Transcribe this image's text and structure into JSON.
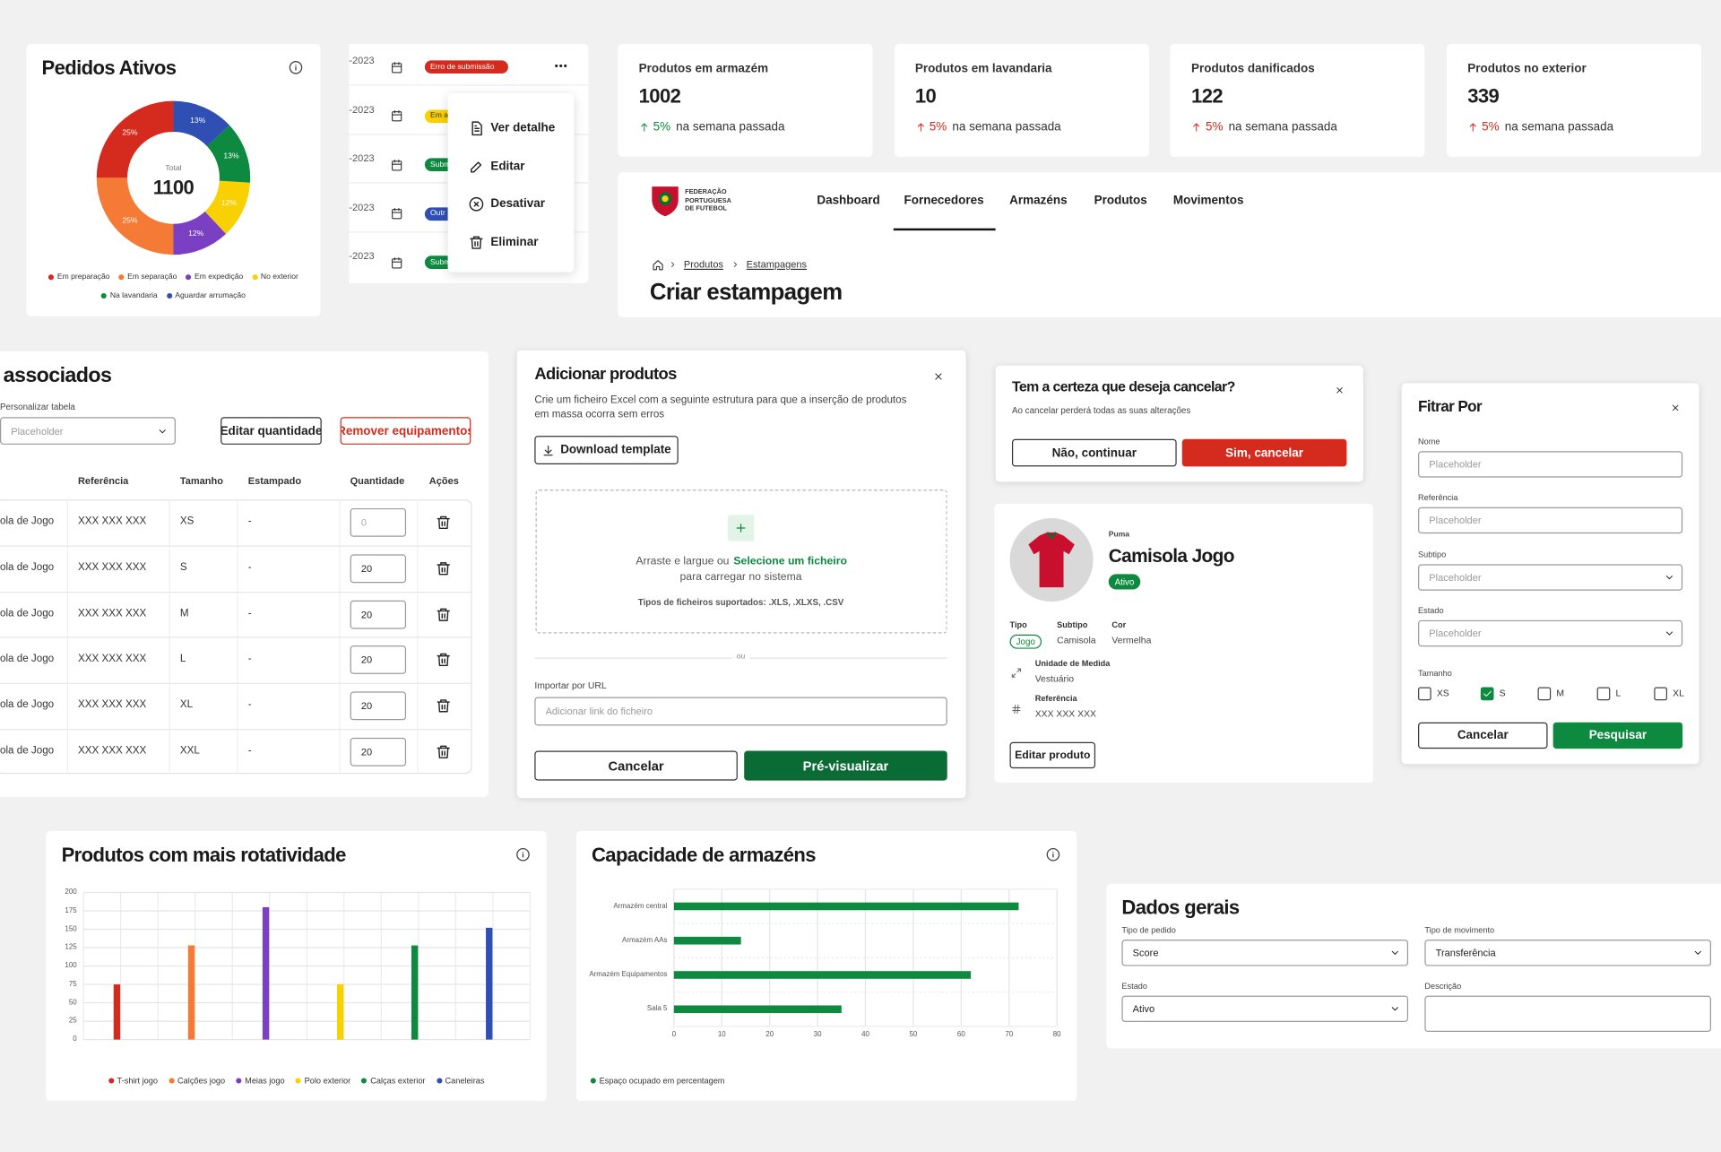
{
  "chart_data": [
    {
      "type": "pie",
      "donut": true,
      "title": "Pedidos Ativos",
      "center_label": "Total",
      "center_value": 1100,
      "categories": [
        "Em preparação",
        "Em separação",
        "Em expedição",
        "No exterior",
        "Na lavandaria",
        "Aguardar arrumação"
      ],
      "values": [
        25,
        25,
        12,
        12,
        13,
        13
      ],
      "value_labels": [
        "25%",
        "25%",
        "12%",
        "12%",
        "13%",
        "13%"
      ],
      "colors": [
        "#d52b1e",
        "#f47a35",
        "#7b3fc4",
        "#f9d000",
        "#0d8a3f",
        "#2f4fb5"
      ]
    },
    {
      "type": "bar",
      "title": "Produtos com mais rotatividade",
      "categories": [
        null
      ],
      "ylim": [
        0,
        200
      ],
      "yticks": [
        0,
        25,
        50,
        75,
        100,
        125,
        150,
        175,
        200
      ],
      "grid": true,
      "series": [
        {
          "name": "T-shirt jogo",
          "color": "#d52b1e",
          "values": [
            75
          ]
        },
        {
          "name": "Calções jogo",
          "color": "#f47a35",
          "values": [
            128
          ]
        },
        {
          "name": "Meias jogo",
          "color": "#7b3fc4",
          "values": [
            180
          ]
        },
        {
          "name": "Polo exterior",
          "color": "#f9d000",
          "values": [
            75
          ]
        },
        {
          "name": "Calças exterior",
          "color": "#0d8a3f",
          "values": [
            128
          ]
        },
        {
          "name": "Caneleiras",
          "color": "#2f4fb5",
          "values": [
            152
          ]
        }
      ]
    },
    {
      "type": "barh",
      "title": "Capacidade de armazéns",
      "categories": [
        "Armazém central",
        "Armazém AAs",
        "Armazém Equipamentos",
        "Sala 5"
      ],
      "xlim": [
        0,
        80
      ],
      "xticks": [
        0,
        10,
        20,
        30,
        40,
        50,
        60,
        70,
        80
      ],
      "grid": true,
      "series": [
        {
          "name": "Espaço ocupado em percentagem",
          "color": "#0d8a3f",
          "values": [
            72,
            14,
            62,
            35
          ]
        }
      ]
    }
  ],
  "orders_table": {
    "rows": [
      {
        "date": "-2023",
        "status": "Erro de submissão",
        "color": "#d52b1e"
      },
      {
        "date": "-2023",
        "status": "Em a",
        "color": "#f9d000"
      },
      {
        "date": "-2023",
        "status": "Subm",
        "color": "#0d8a3f"
      },
      {
        "date": "-2023",
        "status": "Outr",
        "color": "#2f4fb5"
      },
      {
        "date": "-2023",
        "status": "Subm",
        "color": "#0d8a3f"
      }
    ]
  },
  "row_menu": {
    "items": [
      "Ver detalhe",
      "Editar",
      "Desativar",
      "Eliminar"
    ]
  },
  "stats": [
    {
      "label": "Produtos em armazém",
      "value": 1002,
      "change": "5%",
      "note": "na semana passada",
      "color": "#0d8a3f"
    },
    {
      "label": "Produtos em lavandaria",
      "value": 10,
      "change": "5%",
      "note": "na semana passada",
      "color": "#d52b1e"
    },
    {
      "label": "Produtos danificados",
      "value": 122,
      "change": "5%",
      "note": "na semana passada",
      "color": "#d52b1e"
    },
    {
      "label": "Produtos no exterior",
      "value": 339,
      "change": "5%",
      "note": "na semana passada",
      "color": "#d52b1e"
    }
  ],
  "header": {
    "logo": [
      "FEDERAÇÃO",
      "PORTUGUESA",
      "DE FUTEBOL"
    ],
    "nav": [
      "Dashboard",
      "Fornecedores",
      "Armazéns",
      "Produtos",
      "Movimentos"
    ],
    "active_nav": 1,
    "breadcrumb": [
      "Produtos",
      "Estampagens"
    ],
    "title": "Criar estampagem"
  },
  "equipment_table": {
    "title": "associados",
    "customize_label": "Personalizar tabela",
    "select_placeholder": "Placeholder",
    "edit_button": "Editar quantidade",
    "remove_button": "Remover equipamentos",
    "columns": [
      "Referência",
      "Tamanho",
      "Estampado",
      "Quantidade",
      "Ações"
    ],
    "rows": [
      {
        "name": "ola de Jogo",
        "reference": "XXX XXX XXX",
        "size": "XS",
        "print": "-",
        "quantity": 0
      },
      {
        "name": "ola de Jogo",
        "reference": "XXX XXX XXX",
        "size": "S",
        "print": "-",
        "quantity": 20
      },
      {
        "name": "ola de Jogo",
        "reference": "XXX XXX XXX",
        "size": "M",
        "print": "-",
        "quantity": 20
      },
      {
        "name": "ola de Jogo",
        "reference": "XXX XXX XXX",
        "size": "L",
        "print": "-",
        "quantity": 20
      },
      {
        "name": "ola de Jogo",
        "reference": "XXX XXX XXX",
        "size": "XL",
        "print": "-",
        "quantity": 20
      },
      {
        "name": "ola de Jogo",
        "reference": "XXX XXX XXX",
        "size": "XXL",
        "print": "-",
        "quantity": 20
      }
    ]
  },
  "upload_modal": {
    "title": "Adicionar produtos",
    "description": "Crie um ficheiro Excel com a seguinte estrutura para que a inserção de produtos em massa ocorra sem erros",
    "download_button": "Download template",
    "drop_text": "Arraste e largue ou",
    "drop_link": "Selecione um ficheiro",
    "drop_text_2": "para carregar no sistema",
    "file_types": "Tipos de ficheiros suportados: .XLS, .XLXS, .CSV",
    "separator": "ou",
    "url_label": "Importar por URL",
    "url_placeholder": "Adicionar link do ficheiro",
    "cancel_button": "Cancelar",
    "preview_button": "Pré-visualizar"
  },
  "confirm_dialog": {
    "title": "Tem a certeza que deseja cancelar?",
    "message": "Ao cancelar perderá todas as suas alterações",
    "cancel_button": "Não, continuar",
    "confirm_button": "Sim, cancelar"
  },
  "product_card": {
    "brand": "Puma",
    "name": "Camisola Jogo",
    "status": "Ativo",
    "fields": [
      {
        "label": "Tipo",
        "value": "Jogo"
      },
      {
        "label": "Subtipo",
        "value": "Camisola"
      },
      {
        "label": "Cor",
        "value": "Vermelha"
      },
      {
        "label": "Unidade de Medida",
        "value": "Vestuário"
      },
      {
        "label": "Referência",
        "value": "XXX XXX XXX"
      }
    ],
    "edit_button": "Editar produto"
  },
  "filter_panel": {
    "title": "Fitrar Por",
    "fields": [
      {
        "label": "Nome",
        "placeholder": "Placeholder",
        "kind": "input"
      },
      {
        "label": "Referência",
        "placeholder": "Placeholder",
        "kind": "input"
      },
      {
        "label": "Subtipo",
        "placeholder": "Placeholder",
        "kind": "select"
      },
      {
        "label": "Estado",
        "placeholder": "Placeholder",
        "kind": "select"
      }
    ],
    "size_label": "Tamanho",
    "sizes": [
      {
        "label": "XS",
        "checked": false
      },
      {
        "label": "S",
        "checked": true
      },
      {
        "label": "M",
        "checked": false
      },
      {
        "label": "L",
        "checked": false
      },
      {
        "label": "XL",
        "checked": false
      }
    ],
    "cancel_button": "Cancelar",
    "search_button": "Pesquisar"
  },
  "general_form": {
    "title": "Dados gerais",
    "fields": [
      {
        "label": "Tipo de pedido",
        "value": "Score",
        "kind": "select"
      },
      {
        "label": "Tipo de movimento",
        "value": "Transferência",
        "kind": "select"
      },
      {
        "label": "Estado",
        "value": "Ativo",
        "kind": "select"
      },
      {
        "label": "Descrição",
        "kind": "textarea"
      }
    ]
  }
}
